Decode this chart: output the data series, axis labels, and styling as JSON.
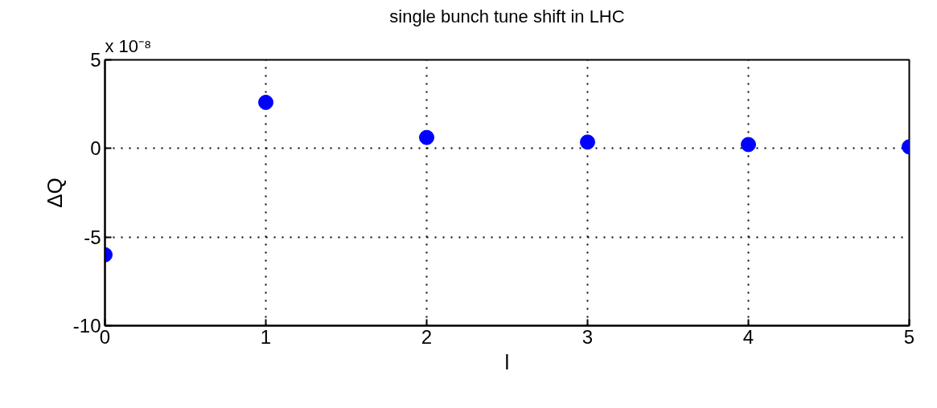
{
  "chart_data": {
    "type": "scatter",
    "title": "single bunch tune shift in LHC",
    "xlabel": "l",
    "ylabel": "ΔQ",
    "annotations": [
      "x 10⁻⁸"
    ],
    "x": [
      0,
      1,
      2,
      3,
      4,
      5
    ],
    "series": [
      {
        "color": "#0000ff",
        "values": [
          -6.0,
          2.6,
          0.62,
          0.36,
          0.22,
          0.09
        ]
      }
    ],
    "xlim": [
      0,
      5
    ],
    "xticks": [
      0,
      1,
      2,
      3,
      4,
      5
    ],
    "ylim": [
      -10,
      5
    ],
    "yticks": [
      -10,
      -5,
      0,
      5
    ],
    "grid": true,
    "marker": "circle"
  }
}
